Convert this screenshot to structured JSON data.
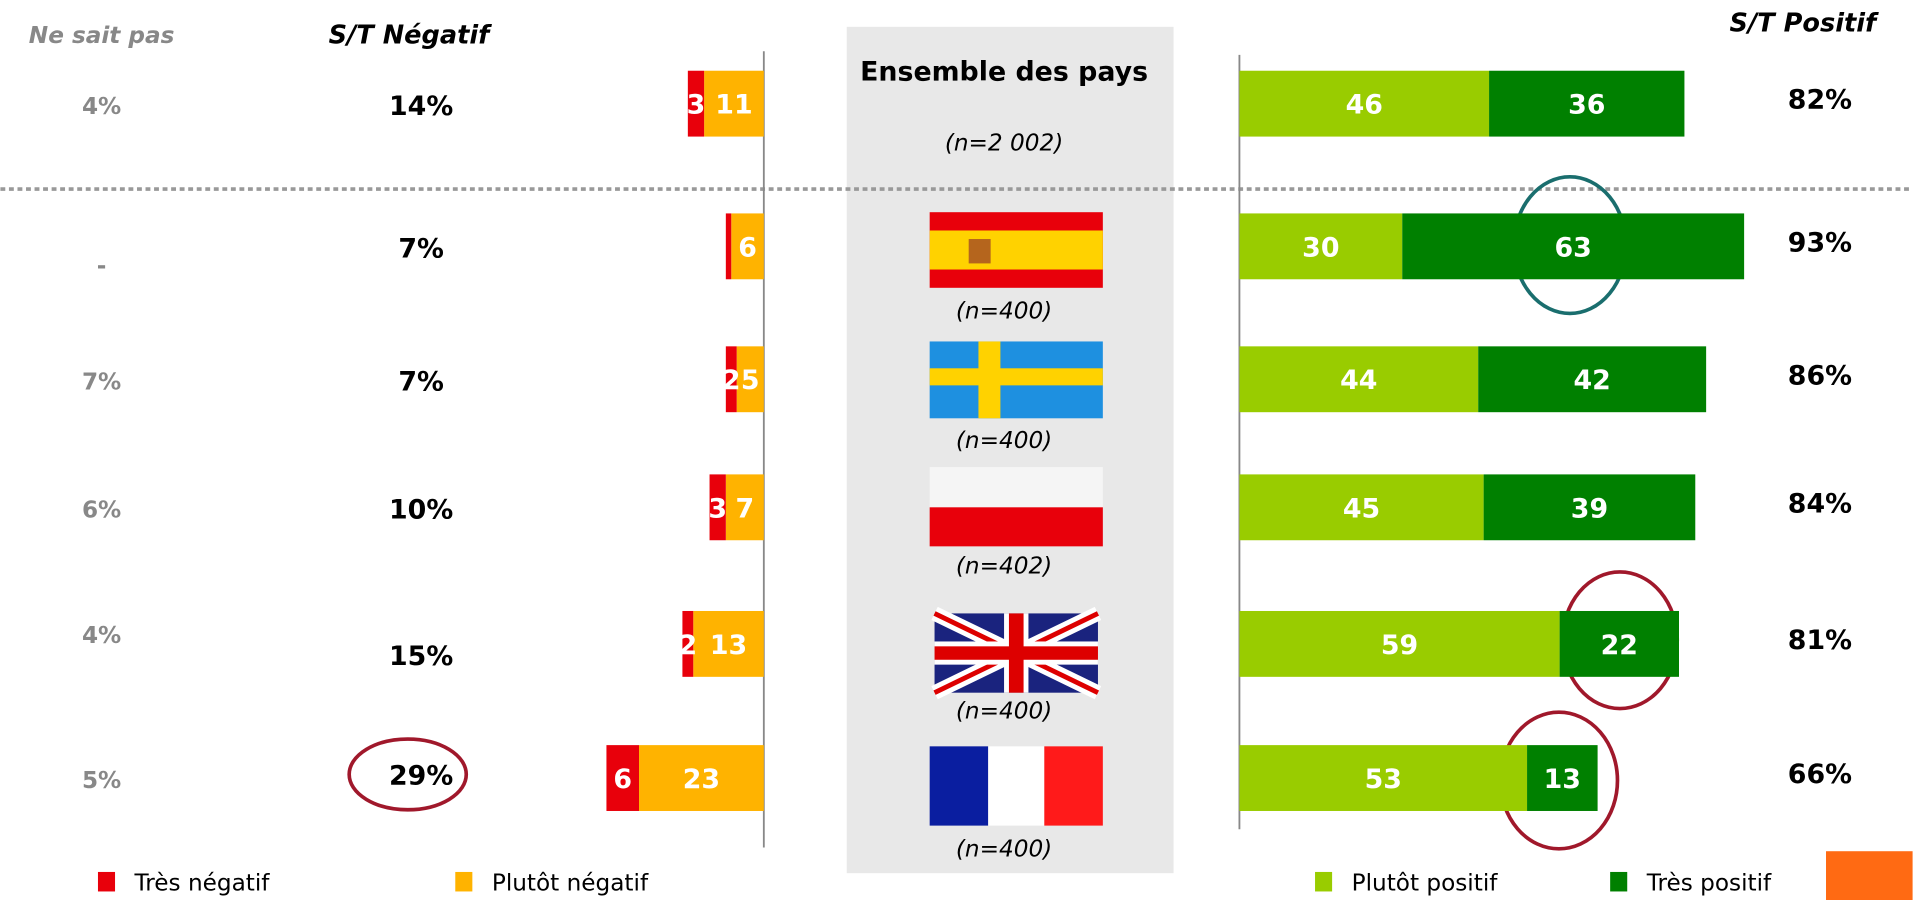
{
  "chart_data": {
    "type": "diverging_bar",
    "group_label": "Ensemble des pays",
    "categories": [
      "(n=2 002)",
      "(n=400)",
      "(n=400)",
      "(n=402)",
      "(n=400)",
      "(n=400)"
    ],
    "dont_know": {
      "name": "Ne sait pas",
      "values": [
        4,
        null,
        7,
        6,
        4,
        5
      ],
      "value_labels": [
        "4%",
        "-",
        "7%",
        "6%",
        "4%",
        "5%"
      ]
    },
    "negative_total": {
      "name": "S/T Négatif",
      "values": [
        14,
        7,
        7,
        10,
        15,
        29
      ],
      "value_labels": [
        "14%",
        "7%",
        "7%",
        "10%",
        "15%",
        "29%"
      ]
    },
    "positive_total": {
      "name": "S/T Positif",
      "values": [
        82,
        93,
        86,
        84,
        81,
        66
      ],
      "value_labels": [
        "82%",
        "93%",
        "86%",
        "84%",
        "81%",
        "66%"
      ]
    },
    "series": [
      {
        "name": "Très négatif",
        "side": "negative",
        "color": "#e8000b",
        "values": [
          3,
          1,
          2,
          3,
          2,
          6
        ],
        "value_labels": [
          "3",
          null,
          "2",
          "3",
          "2",
          "6"
        ]
      },
      {
        "name": "Plutôt négatif",
        "side": "negative",
        "color": "#ffb300",
        "values": [
          11,
          6,
          5,
          7,
          13,
          23
        ]
      },
      {
        "name": "Plutôt positif",
        "side": "positive",
        "color": "#99cc00",
        "values": [
          46,
          30,
          44,
          45,
          59,
          53
        ]
      },
      {
        "name": "Très positif",
        "side": "positive",
        "color": "#008000",
        "values": [
          36,
          63,
          42,
          39,
          22,
          13
        ]
      }
    ]
  }
}
